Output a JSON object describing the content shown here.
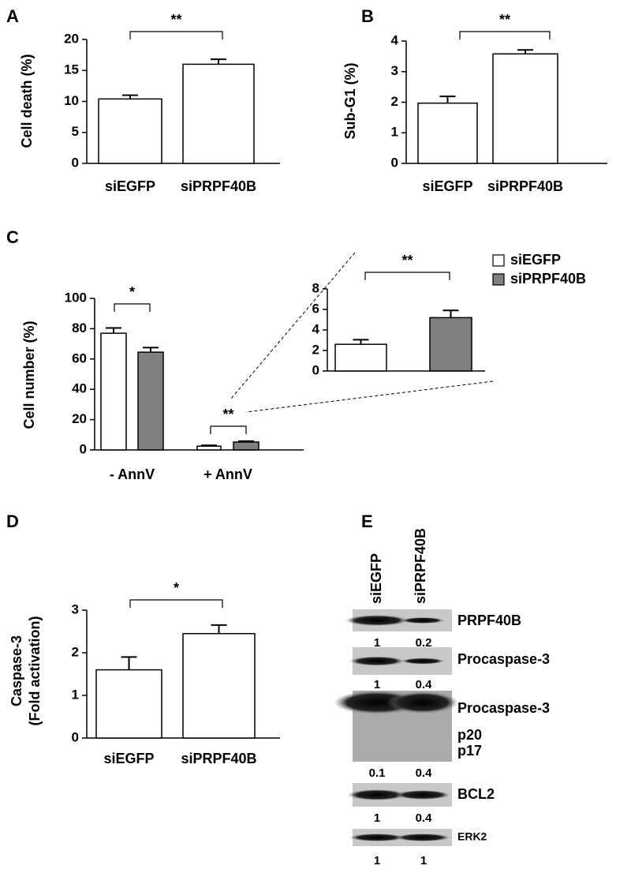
{
  "chart_data": [
    {
      "type": "bar",
      "panel": "A",
      "ylabel": "Cell death (%)",
      "categories": [
        "siEGFP",
        "siPRPF40B"
      ],
      "values": [
        10.4,
        16.0
      ],
      "errors": [
        0.6,
        0.8
      ],
      "color": "#ffffff",
      "ylim": [
        0,
        20
      ],
      "yticks": [
        0,
        5,
        10,
        15,
        20
      ],
      "significance": "**"
    },
    {
      "type": "bar",
      "panel": "B",
      "ylabel": "Sub-G1 (%)",
      "categories": [
        "siEGFP",
        "siPRPF40B"
      ],
      "values": [
        1.97,
        3.58
      ],
      "errors": [
        0.22,
        0.13
      ],
      "color": "#ffffff",
      "ylim": [
        0,
        4
      ],
      "yticks": [
        0,
        1,
        2,
        3,
        4
      ],
      "significance": "**"
    },
    {
      "type": "grouped-bar",
      "panel": "C",
      "ylabel": "Cell number (%)",
      "categories": [
        "- AnnV",
        "+ AnnV"
      ],
      "series": [
        {
          "name": "siEGFP",
          "color": "#ffffff",
          "values": [
            77,
            2.5
          ],
          "errors": [
            3.5,
            0.5
          ]
        },
        {
          "name": "siPRPF40B",
          "color": "#808080",
          "values": [
            64.5,
            5.2
          ],
          "errors": [
            3,
            0.6
          ]
        }
      ],
      "ylim": [
        0,
        100
      ],
      "yticks": [
        0,
        20,
        40,
        60,
        80,
        100
      ],
      "significance": [
        "*",
        "**"
      ]
    },
    {
      "type": "bar",
      "categories": [
        null,
        null
      ],
      "values": [
        2.6,
        5.2
      ],
      "errors": [
        0.45,
        0.7
      ],
      "colors": [
        "#ffffff",
        "#808080"
      ],
      "ylim": [
        0,
        8
      ],
      "yticks": [
        0,
        2,
        4,
        6,
        8
      ],
      "significance": "**"
    },
    {
      "type": "bar",
      "panel": "D",
      "ylabel": [
        "Caspase-3",
        "(Fold activation)"
      ],
      "categories": [
        "siEGFP",
        "siPRPF40B"
      ],
      "values": [
        1.6,
        2.45
      ],
      "errors": [
        0.3,
        0.2
      ],
      "color": "#ffffff",
      "ylim": [
        0,
        3
      ],
      "yticks": [
        0,
        1,
        2,
        3
      ],
      "significance": "*"
    }
  ],
  "blot": {
    "panel": "E",
    "lanes": [
      "siEGFP",
      "siPRPF40B"
    ],
    "rows": [
      {
        "labels": [
          "PRPF40B"
        ],
        "quant": [
          1,
          0.2
        ]
      },
      {
        "labels": [
          "Procaspase-3"
        ],
        "quant": [
          1,
          0.4
        ]
      },
      {
        "labels": [
          "Procaspase-3",
          "p20",
          "p17"
        ],
        "quant": [
          0.1,
          0.4
        ]
      },
      {
        "labels": [
          "BCL2"
        ],
        "quant": [
          1,
          0.4
        ]
      },
      {
        "labels": [
          "ERK2"
        ],
        "quant": [
          1,
          1
        ]
      }
    ]
  }
}
